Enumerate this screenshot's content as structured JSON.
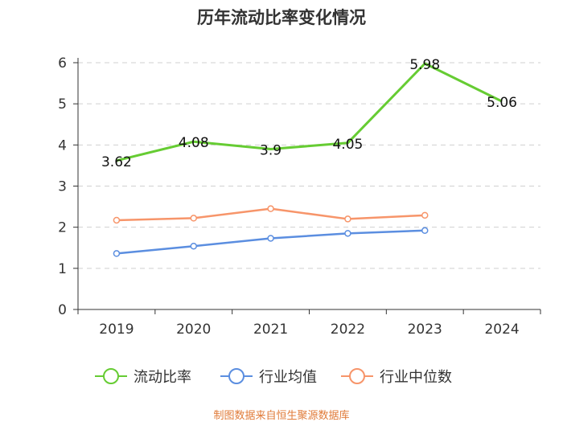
{
  "chart_data": {
    "type": "line",
    "title": "历年流动比率变化情况",
    "categories": [
      "2019",
      "2020",
      "2021",
      "2022",
      "2023",
      "2024"
    ],
    "ylim": [
      0,
      6
    ],
    "yticks": [
      0,
      1,
      2,
      3,
      4,
      5,
      6
    ],
    "grid": true,
    "legend_position": "bottom",
    "series": [
      {
        "name": "流动比率",
        "color": "#66cc33",
        "values": [
          3.62,
          4.08,
          3.9,
          4.05,
          5.98,
          5.06
        ],
        "labels": [
          "3.62",
          "4.08",
          "3.9",
          "4.05",
          "5.98",
          "5.06"
        ]
      },
      {
        "name": "行业均值",
        "color": "#5b8ee0",
        "values": [
          1.36,
          1.54,
          1.73,
          1.85,
          1.92,
          null
        ]
      },
      {
        "name": "行业中位数",
        "color": "#f7956a",
        "values": [
          2.17,
          2.22,
          2.45,
          2.2,
          2.29,
          null
        ]
      }
    ]
  },
  "source": {
    "text": "制图数据来自恒生聚源数据库",
    "color": "#e07b39"
  }
}
